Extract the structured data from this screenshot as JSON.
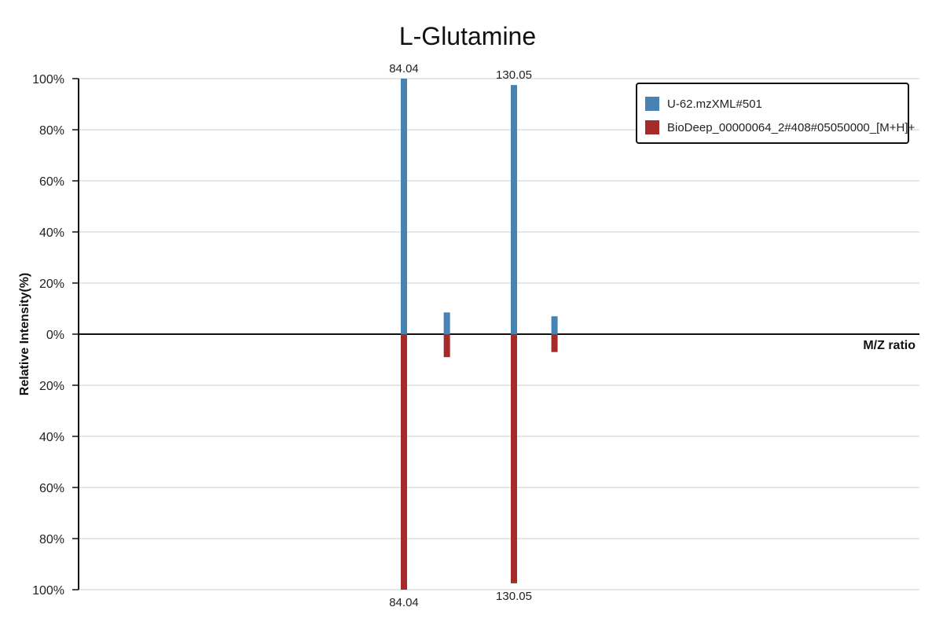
{
  "chart_data": {
    "type": "bar",
    "title": "L-Glutamine",
    "xlabel": "M/Z ratio",
    "ylabel": "Relative Intensity(%)",
    "yticks_top": [
      "100%",
      "80%",
      "60%",
      "40%",
      "20%",
      "0%"
    ],
    "yticks_bottom": [
      "20%",
      "40%",
      "60%",
      "80%",
      "100%"
    ],
    "ylim": [
      -100,
      100
    ],
    "grid": true,
    "legend_position": "top-right",
    "series": [
      {
        "name": "U-62.mzXML#501",
        "color": "#4682b4",
        "direction": "up",
        "peaks": [
          {
            "mz": 84.04,
            "intensity": 100,
            "label": "84.04"
          },
          {
            "mz": 102.0,
            "intensity": 8.5,
            "label": ""
          },
          {
            "mz": 130.05,
            "intensity": 97.5,
            "label": "130.05"
          },
          {
            "mz": 147.0,
            "intensity": 7,
            "label": ""
          }
        ]
      },
      {
        "name": "BioDeep_00000064_2#408#05050000_[M+H]+",
        "color": "#a52a2a",
        "direction": "down",
        "peaks": [
          {
            "mz": 84.04,
            "intensity": 100,
            "label": "84.04"
          },
          {
            "mz": 102.0,
            "intensity": 9,
            "label": ""
          },
          {
            "mz": 130.05,
            "intensity": 97.5,
            "label": "130.05"
          },
          {
            "mz": 147.0,
            "intensity": 7,
            "label": ""
          }
        ]
      }
    ]
  }
}
